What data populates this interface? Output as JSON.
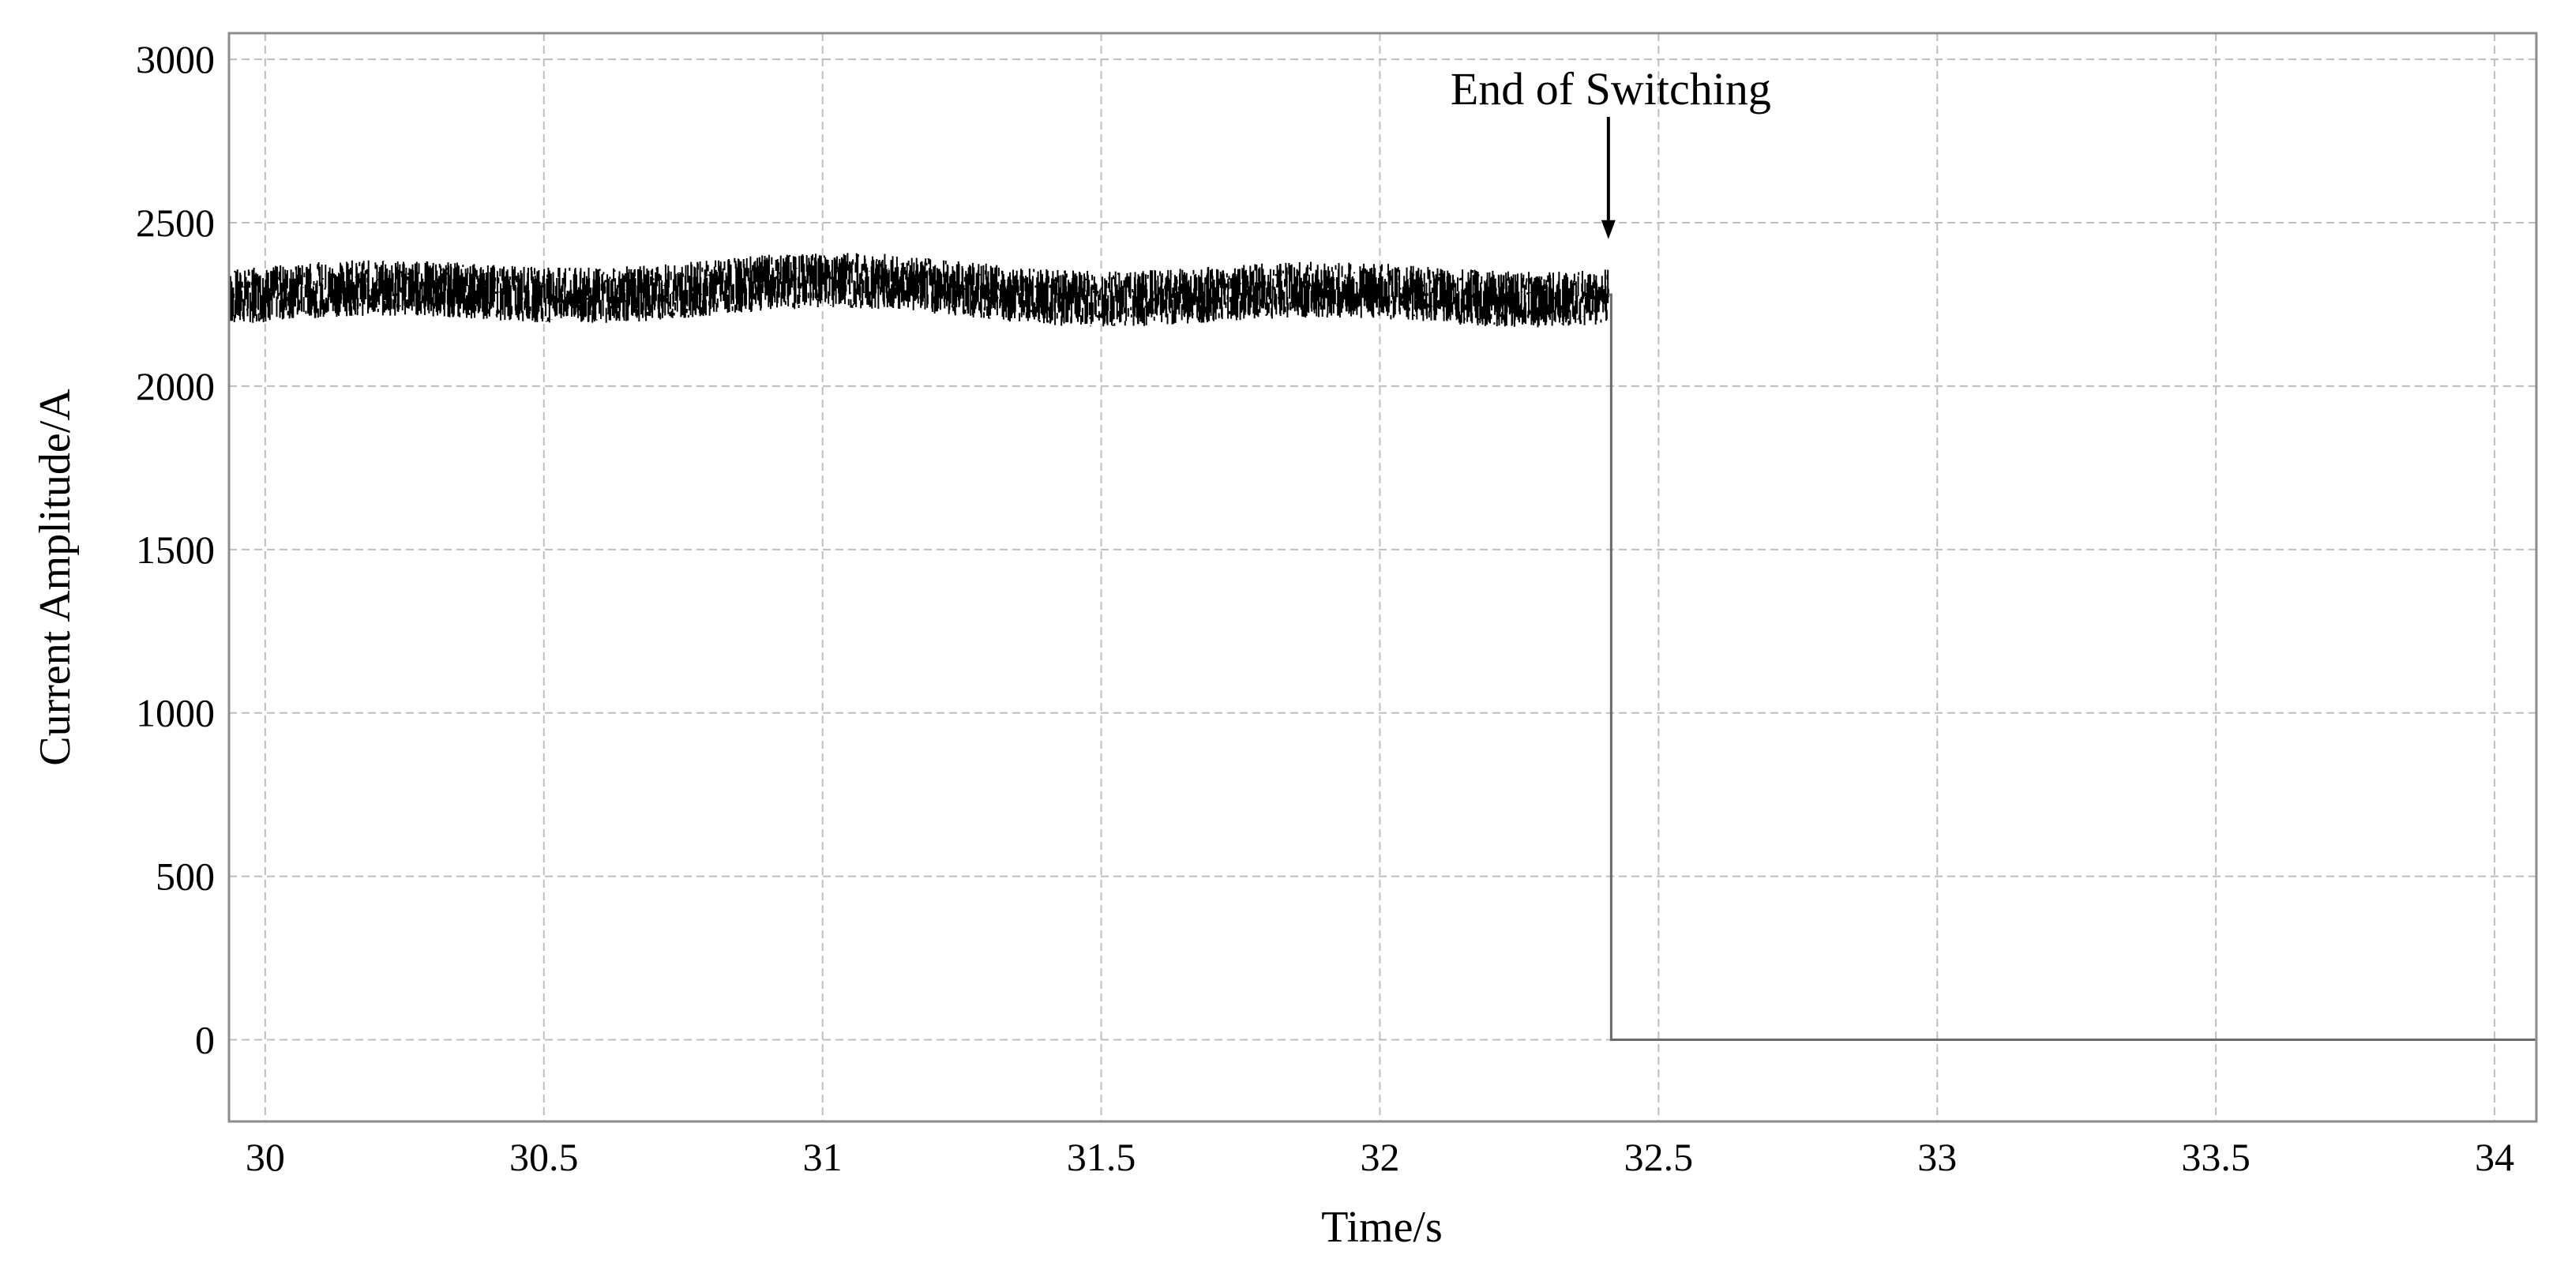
{
  "chart_data": {
    "type": "line",
    "xlabel": "Time/s",
    "ylabel": "Current Amplitude/A",
    "xlim": [
      29.935,
      34.075
    ],
    "ylim": [
      -250,
      3080
    ],
    "x_ticks": [
      30,
      30.5,
      31,
      31.5,
      32,
      32.5,
      33,
      33.5,
      34
    ],
    "x_tick_labels": [
      "30",
      "30.5",
      "31",
      "31.5",
      "32",
      "32.5",
      "33",
      "33.5",
      "34"
    ],
    "y_ticks": [
      0,
      500,
      1000,
      1500,
      2000,
      2500,
      3000
    ],
    "y_tick_labels": [
      "0",
      "500",
      "1000",
      "1500",
      "2000",
      "2500",
      "3000"
    ],
    "grid": true,
    "series": [
      {
        "color": "#000000",
        "segments": [
          {
            "description": "noisy band",
            "x_start": 29.935,
            "x_end": 32.41,
            "mean": 2290,
            "spread": 90
          },
          {
            "x": [
              32.41,
              32.415,
              32.415,
              34.075
            ],
            "y": [
              2280,
              2280,
              0,
              0
            ]
          }
        ]
      }
    ],
    "annotations": [
      {
        "text": "End of Switching",
        "arrow_x": 32.41,
        "arrow_y_tip": 2450
      }
    ]
  }
}
